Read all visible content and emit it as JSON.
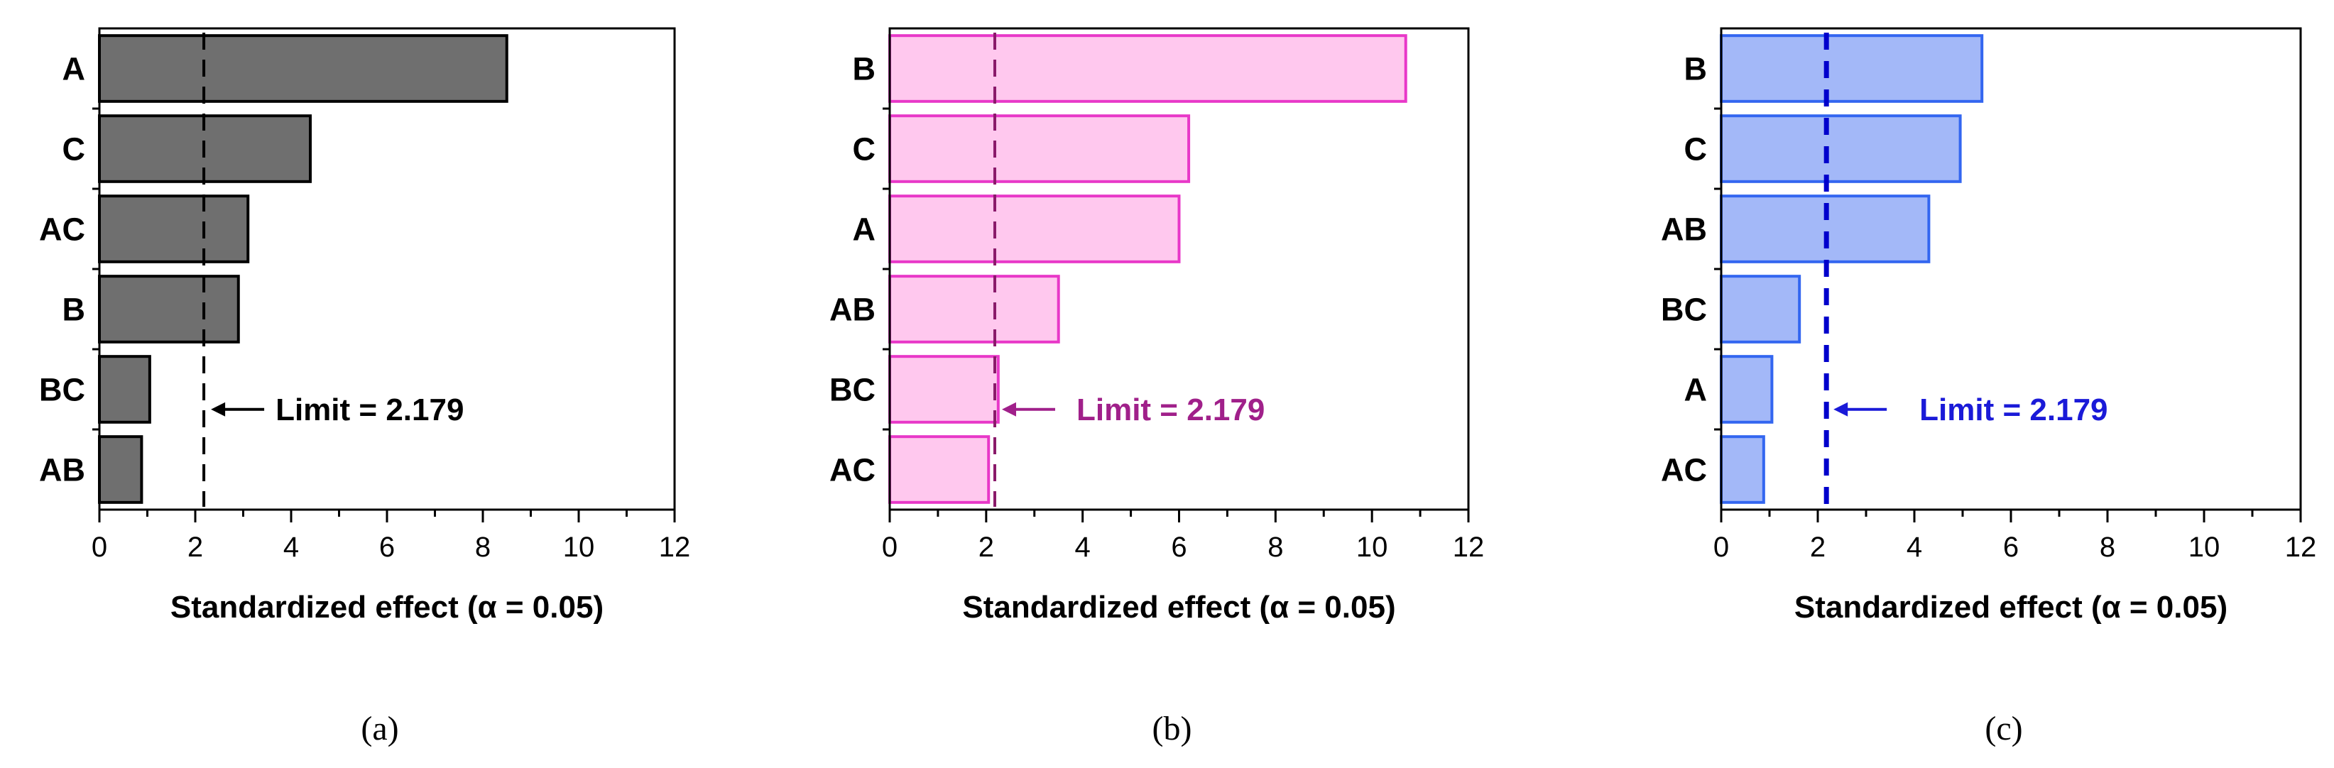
{
  "chart_data": [
    {
      "type": "bar",
      "orientation": "horizontal",
      "caption": "(a)",
      "categories": [
        "A",
        "C",
        "AC",
        "B",
        "BC",
        "AB"
      ],
      "values": [
        8.5,
        4.4,
        3.1,
        2.9,
        1.05,
        0.88
      ],
      "xlabel": "Standardized effect (α = 0.05)",
      "ylabel": "",
      "xlim": [
        0,
        12
      ],
      "xticks": [
        "0",
        "2",
        "4",
        "6",
        "8",
        "10",
        "12"
      ],
      "reference_line": {
        "value": 2.179,
        "label": "Limit = 2.179"
      },
      "colors": {
        "bar_fill": "#6f6f6f",
        "bar_stroke": "#000000",
        "limit_line": "#000000",
        "limit_label": "#000000"
      },
      "grid": false
    },
    {
      "type": "bar",
      "orientation": "horizontal",
      "caption": "(b)",
      "categories": [
        "B",
        "C",
        "A",
        "AB",
        "BC",
        "AC"
      ],
      "values": [
        10.7,
        6.2,
        6.0,
        3.5,
        2.25,
        2.05
      ],
      "xlabel": "Standardized effect (α = 0.05)",
      "ylabel": "",
      "xlim": [
        0,
        12
      ],
      "xticks": [
        "0",
        "2",
        "4",
        "6",
        "8",
        "10",
        "12"
      ],
      "reference_line": {
        "value": 2.179,
        "label": "Limit = 2.179"
      },
      "colors": {
        "bar_fill": "#ffc8ee",
        "bar_stroke": "#e838c8",
        "limit_line": "#8a1a6a",
        "limit_label": "#a0208a"
      },
      "grid": false
    },
    {
      "type": "bar",
      "orientation": "horizontal",
      "caption": "(c)",
      "categories": [
        "B",
        "C",
        "AB",
        "BC",
        "A",
        "AC"
      ],
      "values": [
        5.4,
        4.95,
        4.3,
        1.62,
        1.05,
        0.88
      ],
      "xlabel": "Standardized effect (α = 0.05)",
      "ylabel": "",
      "xlim": [
        0,
        12
      ],
      "xticks": [
        "0",
        "2",
        "4",
        "6",
        "8",
        "10",
        "12"
      ],
      "reference_line": {
        "value": 2.179,
        "label": "Limit = 2.179"
      },
      "colors": {
        "bar_fill": "#a3b8f8",
        "bar_stroke": "#3366f0",
        "limit_line": "#0000cc",
        "limit_label": "#1a1ad8"
      },
      "grid": false
    }
  ]
}
